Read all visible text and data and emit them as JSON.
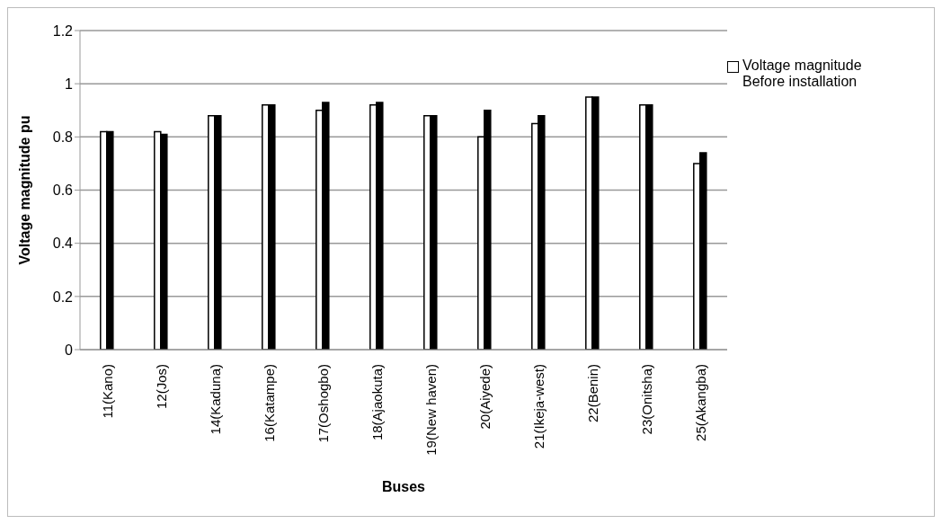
{
  "chart_data": {
    "type": "bar",
    "xlabel": "Buses",
    "ylabel": "Voltage magnitude pu",
    "categories": [
      "11(Kano)",
      "12(Jos)",
      "14(Kaduna)",
      "16(Katampe)",
      "17(Oshogbo)",
      "18(Ajaokuta)",
      "19(New haven)",
      "20(Aiyede)",
      "21(Ikeja-west)",
      "22(Benin)",
      "23(Onitsha)",
      "25(Akangba)"
    ],
    "series": [
      {
        "name": "Voltage magnitude Before installation",
        "color": "#ffffff",
        "values": [
          0.82,
          0.82,
          0.88,
          0.92,
          0.9,
          0.92,
          0.88,
          0.8,
          0.85,
          0.95,
          0.92,
          0.7
        ]
      },
      {
        "color": "#000000",
        "values": [
          0.82,
          0.81,
          0.88,
          0.92,
          0.93,
          0.93,
          0.88,
          0.9,
          0.88,
          0.95,
          0.92,
          0.74
        ]
      }
    ],
    "ylim": [
      0,
      1.2
    ],
    "yticks": [
      0,
      0.2,
      0.4,
      0.6,
      0.8,
      1,
      1.2
    ],
    "grid": "y",
    "legend": "right"
  }
}
